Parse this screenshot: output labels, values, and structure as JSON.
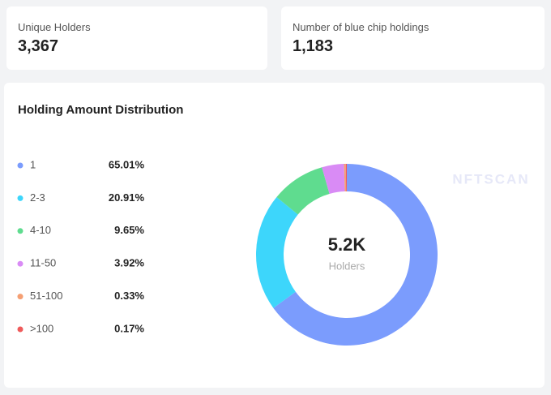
{
  "cards": [
    {
      "label": "Unique Holders",
      "value": "3,367"
    },
    {
      "label": "Number of blue chip holdings",
      "value": "1,183"
    }
  ],
  "chart_data": {
    "type": "pie",
    "title": "Holding Amount Distribution",
    "categories": [
      "1",
      "2-3",
      "4-10",
      "11-50",
      "51-100",
      ">100"
    ],
    "values": [
      65.01,
      20.91,
      9.65,
      3.92,
      0.33,
      0.17
    ],
    "value_labels": [
      "65.01%",
      "20.91%",
      "9.65%",
      "3.92%",
      "0.33%",
      "0.17%"
    ],
    "colors": [
      "#7b9cfd",
      "#3dd6fb",
      "#5fdc8f",
      "#d98bf5",
      "#f59f73",
      "#ef5b5b"
    ],
    "center_value": "5.2K",
    "center_label": "Holders"
  },
  "watermark": "NFTSCAN"
}
